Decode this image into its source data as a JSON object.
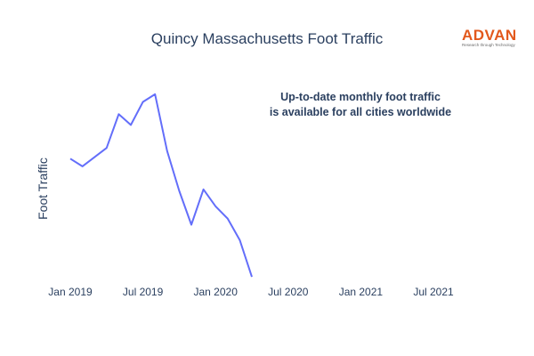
{
  "chart_data": {
    "type": "line",
    "title": "Quincy Massachusetts Foot Traffic",
    "xlabel": "",
    "ylabel": "Foot Traffic",
    "x_tick_labels": [
      "Jan 2019",
      "Jul 2019",
      "Jan 2020",
      "Jul 2020",
      "Jan 2021",
      "Jul 2021"
    ],
    "x": [
      "2019-01",
      "2019-02",
      "2019-03",
      "2019-04",
      "2019-05",
      "2019-06",
      "2019-07",
      "2019-08",
      "2019-09",
      "2019-10",
      "2019-11",
      "2019-12",
      "2020-01",
      "2020-02",
      "2020-03",
      "2020-04",
      "2020-05"
    ],
    "series": [
      {
        "values": [
          73,
          68,
          74,
          80,
          102,
          95,
          110,
          115,
          78,
          52,
          30,
          53,
          42,
          34,
          20,
          -4,
          null
        ],
        "color": "#636efa"
      }
    ],
    "ylim": [
      -8,
      130
    ],
    "y_ticks_shown": false,
    "grid": false,
    "legend": "none",
    "annotation": [
      "Up-to-date monthly foot traffic",
      "is available for all cities worldwide"
    ]
  },
  "logo": {
    "word": "ADVAN",
    "tagline": "Research through Technology",
    "color": "#e2581c"
  }
}
